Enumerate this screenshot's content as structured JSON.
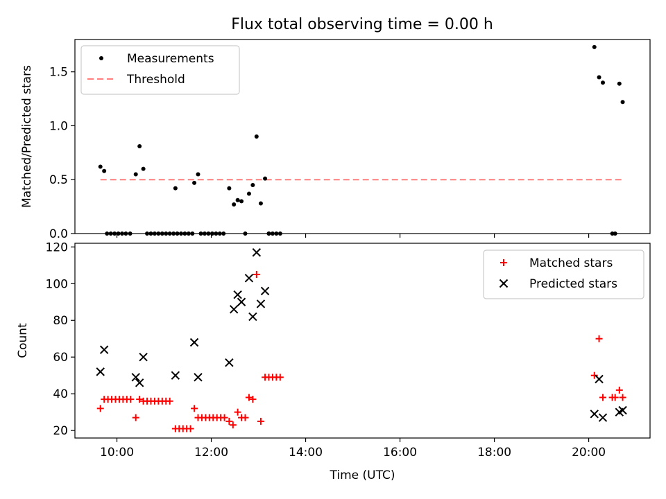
{
  "chart_data": [
    {
      "type": "scatter",
      "title": "Flux total observing time = 0.00 h",
      "xlabel": "",
      "ylabel": "Matched/Predicted stars",
      "xlim": [
        9.11,
        21.3
      ],
      "ylim": [
        0.0,
        1.8
      ],
      "yticks": [
        0.0,
        0.5,
        1.0,
        1.5
      ],
      "ytick_labels": [
        "0.0",
        "0.5",
        "1.0",
        "1.5"
      ],
      "legend_position": "upper left",
      "legend": [
        {
          "label": "Measurements",
          "marker": "dot",
          "color": "#000000"
        },
        {
          "label": "Threshold",
          "marker": "dashed-line",
          "color": "#ff7f7f"
        }
      ],
      "threshold": {
        "value": 0.5,
        "x_start": 9.65,
        "x_end": 20.72
      },
      "series": [
        {
          "name": "Measurements",
          "points": [
            [
              9.65,
              0.62
            ],
            [
              9.73,
              0.58
            ],
            [
              9.79,
              0
            ],
            [
              9.87,
              0
            ],
            [
              9.95,
              0
            ],
            [
              10.03,
              0
            ],
            [
              10.11,
              0
            ],
            [
              10.19,
              0
            ],
            [
              10.28,
              0
            ],
            [
              10.4,
              0.55
            ],
            [
              10.48,
              0.81
            ],
            [
              10.56,
              0.6
            ],
            [
              10.64,
              0
            ],
            [
              10.72,
              0
            ],
            [
              10.8,
              0
            ],
            [
              10.88,
              0
            ],
            [
              10.96,
              0
            ],
            [
              11.04,
              0
            ],
            [
              11.12,
              0
            ],
            [
              11.2,
              0
            ],
            [
              11.28,
              0
            ],
            [
              11.36,
              0
            ],
            [
              11.44,
              0
            ],
            [
              11.52,
              0
            ],
            [
              11.6,
              0
            ],
            [
              11.64,
              0.47
            ],
            [
              11.72,
              0.55
            ],
            [
              11.78,
              0
            ],
            [
              11.86,
              0
            ],
            [
              11.94,
              0
            ],
            [
              12.02,
              0
            ],
            [
              12.1,
              0
            ],
            [
              12.18,
              0
            ],
            [
              12.26,
              0
            ],
            [
              12.38,
              0.42
            ],
            [
              12.48,
              0.27
            ],
            [
              12.56,
              0.31
            ],
            [
              12.64,
              0.3
            ],
            [
              12.72,
              0
            ],
            [
              12.8,
              0.37
            ],
            [
              12.88,
              0.45
            ],
            [
              12.96,
              0.9
            ],
            [
              13.05,
              0.28
            ],
            [
              13.14,
              0.51
            ],
            [
              13.22,
              0
            ],
            [
              13.3,
              0
            ],
            [
              13.38,
              0
            ],
            [
              13.46,
              0
            ],
            [
              13.22,
              0
            ],
            [
              11.24,
              0.42
            ],
            [
              20.12,
              1.73
            ],
            [
              20.22,
              1.45
            ],
            [
              20.3,
              1.4
            ],
            [
              20.5,
              0
            ],
            [
              20.56,
              0
            ],
            [
              20.65,
              1.39
            ],
            [
              20.72,
              1.22
            ]
          ],
          "color": "#000000"
        }
      ]
    },
    {
      "type": "scatter",
      "title": "",
      "xlabel": "Time (UTC)",
      "ylabel": "Count",
      "xlim": [
        9.11,
        21.3
      ],
      "ylim": [
        15.9,
        122
      ],
      "yticks": [
        20,
        40,
        60,
        80,
        100,
        120
      ],
      "ytick_labels": [
        "20",
        "40",
        "60",
        "80",
        "100",
        "120"
      ],
      "xticks": [
        10,
        12,
        14,
        16,
        18,
        20
      ],
      "xtick_labels": [
        "10:00",
        "12:00",
        "14:00",
        "16:00",
        "18:00",
        "20:00"
      ],
      "legend_position": "upper right",
      "legend": [
        {
          "label": "Matched stars",
          "marker": "plus",
          "color": "#ff0000"
        },
        {
          "label": "Predicted stars",
          "marker": "x",
          "color": "#000000"
        }
      ],
      "series": [
        {
          "name": "Matched stars",
          "marker": "plus",
          "color": "#ff0000",
          "points": [
            [
              9.65,
              32
            ],
            [
              9.73,
              37
            ],
            [
              9.81,
              37
            ],
            [
              9.89,
              37
            ],
            [
              9.97,
              37
            ],
            [
              10.05,
              37
            ],
            [
              10.13,
              37
            ],
            [
              10.21,
              37
            ],
            [
              10.29,
              37
            ],
            [
              10.4,
              27
            ],
            [
              10.48,
              37
            ],
            [
              10.56,
              36
            ],
            [
              10.64,
              36
            ],
            [
              10.72,
              36
            ],
            [
              10.8,
              36
            ],
            [
              10.88,
              36
            ],
            [
              10.96,
              36
            ],
            [
              11.04,
              36
            ],
            [
              11.12,
              36
            ],
            [
              11.24,
              21
            ],
            [
              11.32,
              21
            ],
            [
              11.4,
              21
            ],
            [
              11.48,
              21
            ],
            [
              11.56,
              21
            ],
            [
              11.64,
              32
            ],
            [
              11.72,
              27
            ],
            [
              11.8,
              27
            ],
            [
              11.88,
              27
            ],
            [
              11.96,
              27
            ],
            [
              12.04,
              27
            ],
            [
              12.12,
              27
            ],
            [
              12.2,
              27
            ],
            [
              12.28,
              27
            ],
            [
              12.38,
              25
            ],
            [
              12.46,
              23
            ],
            [
              12.56,
              30
            ],
            [
              12.64,
              27
            ],
            [
              12.72,
              27
            ],
            [
              12.8,
              38
            ],
            [
              12.88,
              37
            ],
            [
              12.96,
              105
            ],
            [
              13.05,
              25
            ],
            [
              13.14,
              49
            ],
            [
              13.22,
              49
            ],
            [
              13.3,
              49
            ],
            [
              13.38,
              49
            ],
            [
              13.46,
              49
            ],
            [
              20.12,
              50
            ],
            [
              20.22,
              70
            ],
            [
              20.3,
              38
            ],
            [
              20.5,
              38
            ],
            [
              20.56,
              38
            ],
            [
              20.65,
              42
            ],
            [
              20.72,
              38
            ]
          ]
        },
        {
          "name": "Predicted stars",
          "marker": "x",
          "color": "#000000",
          "points": [
            [
              9.65,
              52
            ],
            [
              9.73,
              64
            ],
            [
              10.4,
              49
            ],
            [
              10.48,
              46
            ],
            [
              10.56,
              60
            ],
            [
              11.24,
              50
            ],
            [
              11.64,
              68
            ],
            [
              11.72,
              49
            ],
            [
              12.38,
              57
            ],
            [
              12.48,
              86
            ],
            [
              12.56,
              94
            ],
            [
              12.64,
              90
            ],
            [
              12.8,
              103
            ],
            [
              12.88,
              82
            ],
            [
              12.96,
              117
            ],
            [
              13.05,
              89
            ],
            [
              13.14,
              96
            ],
            [
              20.12,
              29
            ],
            [
              20.22,
              48
            ],
            [
              20.3,
              27
            ],
            [
              20.65,
              30
            ],
            [
              20.72,
              31
            ]
          ]
        }
      ]
    }
  ]
}
